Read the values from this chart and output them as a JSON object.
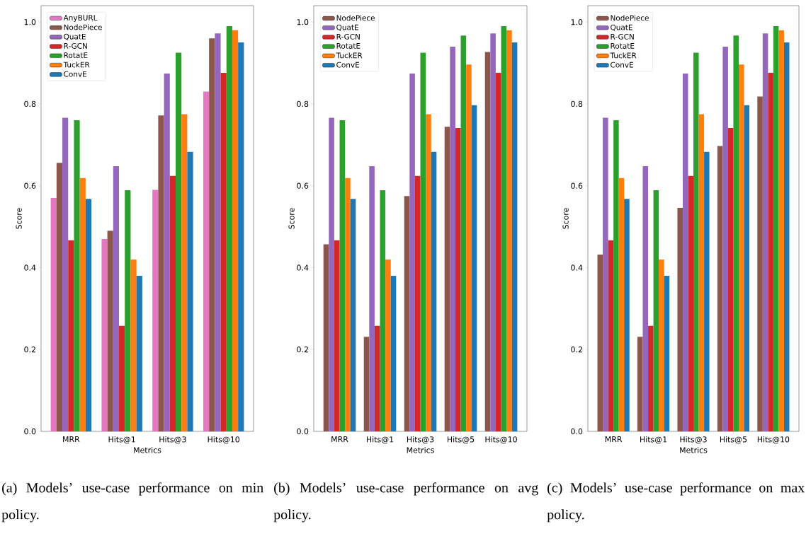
{
  "chart_data": [
    {
      "type": "bar",
      "categories": [
        "MRR",
        "Hits@1",
        "Hits@3",
        "Hits@10"
      ],
      "xlabel": "Metrics",
      "ylabel": "Score",
      "ylim": [
        0,
        1.04
      ],
      "yticks": [
        {
          "value": 0,
          "label": "0.0"
        },
        {
          "value": 0.2,
          "label": "0.2"
        },
        {
          "value": 0.4,
          "label": "0.4"
        },
        {
          "value": 0.6,
          "label": "0.6"
        },
        {
          "value": 0.8,
          "label": "0.8"
        },
        {
          "value": 1.0,
          "label": "1.0"
        }
      ],
      "legend": "top left",
      "annotations": [
        "(a) Models’ use-case performance on min policy."
      ],
      "series": [
        {
          "name": "AnyBURL",
          "color": "#e377c2",
          "values": [
            0.57,
            0.47,
            0.59,
            0.83
          ]
        },
        {
          "name": "NodePiece",
          "color": "#8c564b",
          "values": [
            0.656,
            0.49,
            0.772,
            0.96
          ]
        },
        {
          "name": "QuatE",
          "color": "#9467bd",
          "values": [
            0.766,
            0.648,
            0.874,
            0.972
          ]
        },
        {
          "name": "R-GCN",
          "color": "#d62728",
          "values": [
            0.467,
            0.258,
            0.624,
            0.876
          ]
        },
        {
          "name": "RotatE",
          "color": "#2ca02c",
          "values": [
            0.76,
            0.589,
            0.925,
            0.99
          ]
        },
        {
          "name": "TuckER",
          "color": "#ff7f0e",
          "values": [
            0.619,
            0.42,
            0.775,
            0.98
          ]
        },
        {
          "name": "ConvE",
          "color": "#1f77b4",
          "values": [
            0.568,
            0.38,
            0.683,
            0.95
          ]
        }
      ]
    },
    {
      "type": "bar",
      "categories": [
        "MRR",
        "Hits@1",
        "Hits@3",
        "Hits@5",
        "Hits@10"
      ],
      "xlabel": "Metrics",
      "ylabel": "Score",
      "ylim": [
        0,
        1.04
      ],
      "yticks": [
        {
          "value": 0,
          "label": "0.0"
        },
        {
          "value": 0.2,
          "label": "0.2"
        },
        {
          "value": 0.4,
          "label": "0.4"
        },
        {
          "value": 0.6,
          "label": "0.6"
        },
        {
          "value": 0.8,
          "label": "0.8"
        },
        {
          "value": 1.0,
          "label": "1.0"
        }
      ],
      "legend": "top left",
      "annotations": [
        "(b) Models’ use-case performance on avg policy."
      ],
      "series": [
        {
          "name": "NodePiece",
          "color": "#8c564b",
          "values": [
            0.457,
            0.231,
            0.575,
            0.744,
            0.927
          ]
        },
        {
          "name": "QuatE",
          "color": "#9467bd",
          "values": [
            0.766,
            0.648,
            0.874,
            0.94,
            0.972
          ]
        },
        {
          "name": "R-GCN",
          "color": "#d62728",
          "values": [
            0.467,
            0.258,
            0.624,
            0.741,
            0.876
          ]
        },
        {
          "name": "RotatE",
          "color": "#2ca02c",
          "values": [
            0.76,
            0.589,
            0.925,
            0.967,
            0.99
          ]
        },
        {
          "name": "TuckER",
          "color": "#ff7f0e",
          "values": [
            0.619,
            0.42,
            0.775,
            0.896,
            0.98
          ]
        },
        {
          "name": "ConvE",
          "color": "#1f77b4",
          "values": [
            0.568,
            0.38,
            0.683,
            0.797,
            0.95
          ]
        }
      ]
    },
    {
      "type": "bar",
      "categories": [
        "MRR",
        "Hits@1",
        "Hits@3",
        "Hits@5",
        "Hits@10"
      ],
      "xlabel": "Metrics",
      "ylabel": "Score",
      "ylim": [
        0,
        1.04
      ],
      "yticks": [
        {
          "value": 0,
          "label": "0.0"
        },
        {
          "value": 0.2,
          "label": "0.2"
        },
        {
          "value": 0.4,
          "label": "0.4"
        },
        {
          "value": 0.6,
          "label": "0.6"
        },
        {
          "value": 0.8,
          "label": "0.8"
        },
        {
          "value": 1.0,
          "label": "1.0"
        }
      ],
      "legend": "top left",
      "annotations": [
        "(c) Models’ use-case performance on max policy."
      ],
      "series": [
        {
          "name": "NodePiece",
          "color": "#8c564b",
          "values": [
            0.432,
            0.231,
            0.546,
            0.697,
            0.818
          ]
        },
        {
          "name": "QuatE",
          "color": "#9467bd",
          "values": [
            0.766,
            0.648,
            0.874,
            0.94,
            0.972
          ]
        },
        {
          "name": "R-GCN",
          "color": "#d62728",
          "values": [
            0.467,
            0.258,
            0.624,
            0.741,
            0.876
          ]
        },
        {
          "name": "RotatE",
          "color": "#2ca02c",
          "values": [
            0.76,
            0.589,
            0.925,
            0.967,
            0.99
          ]
        },
        {
          "name": "TuckER",
          "color": "#ff7f0e",
          "values": [
            0.619,
            0.42,
            0.775,
            0.896,
            0.98
          ]
        },
        {
          "name": "ConvE",
          "color": "#1f77b4",
          "values": [
            0.568,
            0.38,
            0.683,
            0.797,
            0.95
          ]
        }
      ]
    }
  ]
}
